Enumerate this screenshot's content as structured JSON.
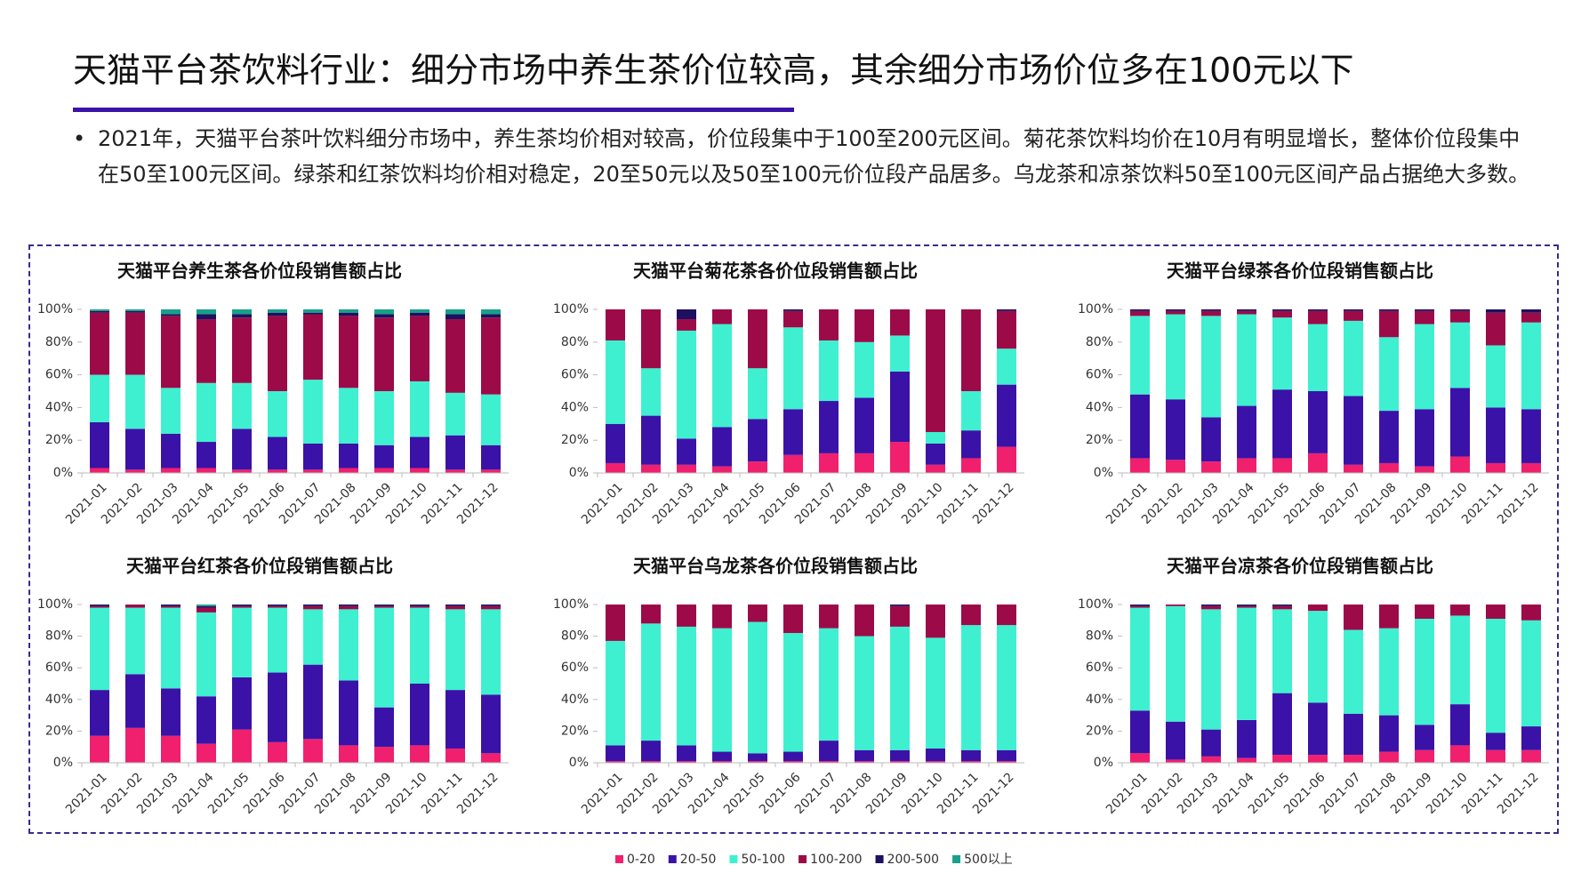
{
  "title": "天猫平台茶饮料行业：细分市场中养生茶价位较高，其余细分市场价位多在100元以下",
  "bullet": "2021年，天猫平台茶叶饮料细分市场中，养生茶均价相对较高，价位段集中于100至200元区间。菊花茶饮料均价在10月有明显增长，整体价位段集中在50至100元区间。绿茶和红茶饮料均价相对稳定，20至50元以及50至100元价位段产品居多。乌龙茶和凉茶饮料50至100元区间产品占据绝大多数。",
  "chart_data": [
    {
      "type": "stacked_bar",
      "title": "天猫平台养生茶各价位段销售额占比",
      "categories": [
        "2021-01",
        "2021-02",
        "2021-03",
        "2021-04",
        "2021-05",
        "2021-06",
        "2021-07",
        "2021-08",
        "2021-09",
        "2021-10",
        "2021-11",
        "2021-12"
      ],
      "ylim": [
        0,
        100
      ],
      "yticks": [
        {
          "value": 0,
          "label": "0%"
        },
        {
          "value": 20,
          "label": "20%"
        },
        {
          "value": 40,
          "label": "40%"
        },
        {
          "value": 60,
          "label": "60%"
        },
        {
          "value": 80,
          "label": "80%"
        },
        {
          "value": 100,
          "label": "100%"
        }
      ],
      "series": [
        {
          "name": "0-20",
          "color": "#f0206e",
          "values": [
            3,
            2,
            3,
            3,
            2,
            2,
            2,
            3,
            3,
            3,
            2,
            2
          ]
        },
        {
          "name": "20-50",
          "color": "#3a12a8",
          "values": [
            28,
            25,
            21,
            16,
            25,
            20,
            16,
            15,
            14,
            19,
            21,
            15
          ]
        },
        {
          "name": "50-100",
          "color": "#3ef0d0",
          "values": [
            29,
            33,
            28,
            36,
            28,
            28,
            39,
            34,
            33,
            34,
            26,
            31
          ]
        },
        {
          "name": "100-200",
          "color": "#9c0a48",
          "values": [
            38,
            38,
            44,
            39,
            40,
            46,
            40,
            44,
            45,
            40,
            45,
            47
          ]
        },
        {
          "name": "200-500",
          "color": "#1e1060",
          "values": [
            1,
            1,
            1,
            3,
            2,
            2,
            1,
            2,
            2,
            2,
            3,
            2
          ]
        },
        {
          "name": "500以上",
          "color": "#1aa08a",
          "values": [
            1,
            1,
            3,
            3,
            3,
            2,
            2,
            2,
            3,
            2,
            3,
            3
          ]
        }
      ]
    },
    {
      "type": "stacked_bar",
      "title": "天猫平台菊花茶各价位段销售额占比",
      "categories": [
        "2021-01",
        "2021-02",
        "2021-03",
        "2021-04",
        "2021-05",
        "2021-06",
        "2021-07",
        "2021-08",
        "2021-09",
        "2021-10",
        "2021-11",
        "2021-12"
      ],
      "ylim": [
        0,
        100
      ],
      "yticks": [
        {
          "value": 0,
          "label": "0%"
        },
        {
          "value": 20,
          "label": "20%"
        },
        {
          "value": 40,
          "label": "40%"
        },
        {
          "value": 60,
          "label": "60%"
        },
        {
          "value": 80,
          "label": "80%"
        },
        {
          "value": 100,
          "label": "100%"
        }
      ],
      "series": [
        {
          "name": "0-20",
          "color": "#f0206e",
          "values": [
            6,
            5,
            5,
            4,
            7,
            11,
            12,
            12,
            19,
            5,
            9,
            16
          ]
        },
        {
          "name": "20-50",
          "color": "#3a12a8",
          "values": [
            24,
            30,
            16,
            24,
            26,
            28,
            32,
            34,
            43,
            13,
            17,
            38
          ]
        },
        {
          "name": "50-100",
          "color": "#3ef0d0",
          "values": [
            51,
            29,
            66,
            63,
            31,
            50,
            37,
            34,
            22,
            7,
            24,
            22
          ]
        },
        {
          "name": "100-200",
          "color": "#9c0a48",
          "values": [
            19,
            36,
            7,
            9,
            36,
            10,
            19,
            20,
            16,
            75,
            50,
            23
          ]
        },
        {
          "name": "200-500",
          "color": "#1e1060",
          "values": [
            0,
            0,
            6,
            0,
            0,
            1,
            0,
            0,
            0,
            0,
            0,
            1
          ]
        },
        {
          "name": "500以上",
          "color": "#1aa08a",
          "values": [
            0,
            0,
            0,
            0,
            0,
            0,
            0,
            0,
            0,
            0,
            0,
            0
          ]
        }
      ]
    },
    {
      "type": "stacked_bar",
      "title": "天猫平台绿茶各价位段销售额占比",
      "categories": [
        "2021-01",
        "2021-02",
        "2021-03",
        "2021-04",
        "2021-05",
        "2021-06",
        "2021-07",
        "2021-08",
        "2021-09",
        "2021-10",
        "2021-11",
        "2021-12"
      ],
      "ylim": [
        0,
        100
      ],
      "yticks": [
        {
          "value": 0,
          "label": "0%"
        },
        {
          "value": 20,
          "label": "20%"
        },
        {
          "value": 40,
          "label": "40%"
        },
        {
          "value": 60,
          "label": "60%"
        },
        {
          "value": 80,
          "label": "80%"
        },
        {
          "value": 100,
          "label": "100%"
        }
      ],
      "series": [
        {
          "name": "0-20",
          "color": "#f0206e",
          "values": [
            9,
            8,
            7,
            9,
            9,
            12,
            5,
            6,
            4,
            10,
            6,
            6
          ]
        },
        {
          "name": "20-50",
          "color": "#3a12a8",
          "values": [
            39,
            37,
            27,
            32,
            42,
            38,
            42,
            32,
            35,
            42,
            34,
            33
          ]
        },
        {
          "name": "50-100",
          "color": "#3ef0d0",
          "values": [
            48,
            52,
            62,
            56,
            44,
            41,
            46,
            45,
            52,
            40,
            38,
            53
          ]
        },
        {
          "name": "100-200",
          "color": "#9c0a48",
          "values": [
            3,
            2,
            3,
            2,
            4,
            8,
            6,
            16,
            8,
            7,
            20,
            6
          ]
        },
        {
          "name": "200-500",
          "color": "#1e1060",
          "values": [
            1,
            1,
            1,
            1,
            1,
            1,
            1,
            1,
            1,
            1,
            2,
            2
          ]
        },
        {
          "name": "500以上",
          "color": "#1aa08a",
          "values": [
            0,
            0,
            0,
            0,
            0,
            0,
            0,
            0,
            0,
            0,
            0,
            0
          ]
        }
      ]
    },
    {
      "type": "stacked_bar",
      "title": "天猫平台红茶各价位段销售额占比",
      "categories": [
        "2021-01",
        "2021-02",
        "2021-03",
        "2021-04",
        "2021-05",
        "2021-06",
        "2021-07",
        "2021-08",
        "2021-09",
        "2021-10",
        "2021-11",
        "2021-12"
      ],
      "ylim": [
        0,
        100
      ],
      "yticks": [
        {
          "value": 0,
          "label": "0%"
        },
        {
          "value": 20,
          "label": "20%"
        },
        {
          "value": 40,
          "label": "40%"
        },
        {
          "value": 60,
          "label": "60%"
        },
        {
          "value": 80,
          "label": "80%"
        },
        {
          "value": 100,
          "label": "100%"
        }
      ],
      "series": [
        {
          "name": "0-20",
          "color": "#f0206e",
          "values": [
            17,
            22,
            17,
            12,
            21,
            13,
            15,
            11,
            10,
            11,
            9,
            6
          ]
        },
        {
          "name": "20-50",
          "color": "#3a12a8",
          "values": [
            29,
            34,
            30,
            30,
            33,
            44,
            47,
            41,
            25,
            39,
            37,
            37
          ]
        },
        {
          "name": "50-100",
          "color": "#3ef0d0",
          "values": [
            52,
            42,
            51,
            53,
            44,
            41,
            35,
            45,
            63,
            48,
            51,
            54
          ]
        },
        {
          "name": "100-200",
          "color": "#9c0a48",
          "values": [
            1,
            2,
            1,
            3,
            1,
            1,
            2,
            2,
            1,
            1,
            2,
            2
          ]
        },
        {
          "name": "200-500",
          "color": "#1e1060",
          "values": [
            1,
            0,
            1,
            1,
            1,
            1,
            1,
            1,
            1,
            1,
            1,
            1
          ]
        },
        {
          "name": "500以上",
          "color": "#1aa08a",
          "values": [
            0,
            0,
            0,
            1,
            0,
            0,
            0,
            0,
            0,
            0,
            0,
            0
          ]
        }
      ]
    },
    {
      "type": "stacked_bar",
      "title": "天猫平台乌龙茶各价位段销售额占比",
      "categories": [
        "2021-01",
        "2021-02",
        "2021-03",
        "2021-04",
        "2021-05",
        "2021-06",
        "2021-07",
        "2021-08",
        "2021-09",
        "2021-10",
        "2021-11",
        "2021-12"
      ],
      "ylim": [
        0,
        100
      ],
      "yticks": [
        {
          "value": 0,
          "label": "0%"
        },
        {
          "value": 20,
          "label": "20%"
        },
        {
          "value": 40,
          "label": "40%"
        },
        {
          "value": 60,
          "label": "60%"
        },
        {
          "value": 80,
          "label": "80%"
        },
        {
          "value": 100,
          "label": "100%"
        }
      ],
      "series": [
        {
          "name": "0-20",
          "color": "#f0206e",
          "values": [
            1,
            1,
            1,
            1,
            1,
            1,
            1,
            1,
            1,
            1,
            1,
            1
          ]
        },
        {
          "name": "20-50",
          "color": "#3a12a8",
          "values": [
            10,
            13,
            10,
            6,
            5,
            6,
            13,
            7,
            7,
            8,
            7,
            7
          ]
        },
        {
          "name": "50-100",
          "color": "#3ef0d0",
          "values": [
            66,
            74,
            75,
            78,
            83,
            75,
            71,
            72,
            78,
            70,
            79,
            79
          ]
        },
        {
          "name": "100-200",
          "color": "#9c0a48",
          "values": [
            23,
            12,
            14,
            15,
            11,
            18,
            15,
            20,
            13,
            21,
            13,
            13
          ]
        },
        {
          "name": "200-500",
          "color": "#1e1060",
          "values": [
            0,
            0,
            0,
            0,
            0,
            0,
            0,
            0,
            1,
            0,
            0,
            0
          ]
        },
        {
          "name": "500以上",
          "color": "#1aa08a",
          "values": [
            0,
            0,
            0,
            0,
            0,
            0,
            0,
            0,
            0,
            0,
            0,
            0
          ]
        }
      ]
    },
    {
      "type": "stacked_bar",
      "title": "天猫平台凉茶各价位段销售额占比",
      "categories": [
        "2021-01",
        "2021-02",
        "2021-03",
        "2021-04",
        "2021-05",
        "2021-06",
        "2021-07",
        "2021-08",
        "2021-09",
        "2021-10",
        "2021-11",
        "2021-12"
      ],
      "ylim": [
        0,
        100
      ],
      "yticks": [
        {
          "value": 0,
          "label": "0%"
        },
        {
          "value": 20,
          "label": "20%"
        },
        {
          "value": 40,
          "label": "40%"
        },
        {
          "value": 60,
          "label": "60%"
        },
        {
          "value": 80,
          "label": "80%"
        },
        {
          "value": 100,
          "label": "100%"
        }
      ],
      "series": [
        {
          "name": "0-20",
          "color": "#f0206e",
          "values": [
            6,
            2,
            4,
            3,
            5,
            5,
            5,
            7,
            8,
            11,
            8,
            8
          ]
        },
        {
          "name": "20-50",
          "color": "#3a12a8",
          "values": [
            27,
            24,
            17,
            24,
            39,
            33,
            26,
            23,
            16,
            26,
            11,
            15
          ]
        },
        {
          "name": "50-100",
          "color": "#3ef0d0",
          "values": [
            65,
            73,
            76,
            71,
            53,
            58,
            53,
            55,
            67,
            56,
            72,
            67
          ]
        },
        {
          "name": "100-200",
          "color": "#9c0a48",
          "values": [
            1,
            1,
            2,
            1,
            2,
            4,
            16,
            15,
            9,
            7,
            9,
            10
          ]
        },
        {
          "name": "200-500",
          "color": "#1e1060",
          "values": [
            1,
            0,
            1,
            1,
            1,
            0,
            0,
            0,
            0,
            0,
            0,
            0
          ]
        },
        {
          "name": "500以上",
          "color": "#1aa08a",
          "values": [
            0,
            0,
            0,
            0,
            0,
            0,
            0,
            0,
            0,
            0,
            0,
            0
          ]
        }
      ]
    }
  ]
}
